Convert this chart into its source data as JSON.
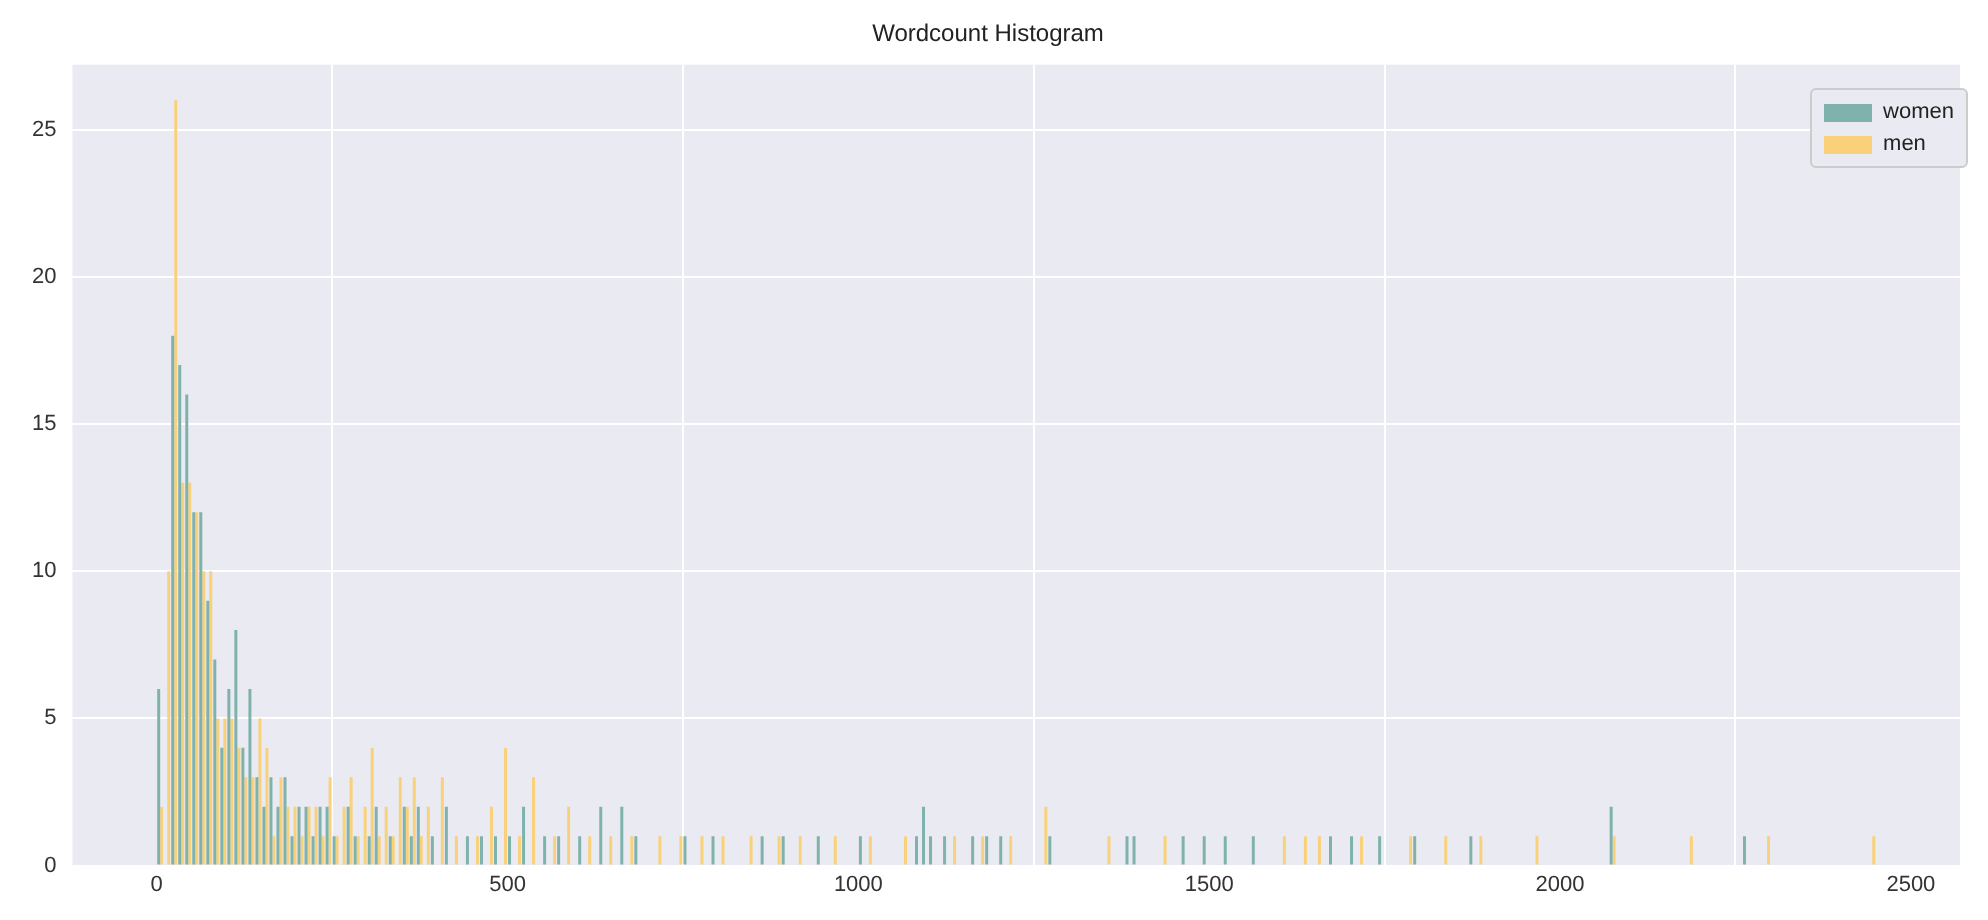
{
  "chart_data": {
    "type": "histogram",
    "title": "Wordcount Histogram",
    "bins": [
      0,
      10,
      20,
      30,
      40,
      50,
      60,
      70,
      80,
      90,
      100,
      110,
      120,
      130,
      140,
      150,
      160,
      170,
      180,
      190,
      200,
      210,
      220,
      230,
      240,
      250,
      260,
      270,
      280,
      290,
      300,
      310,
      320,
      330,
      340,
      350,
      360,
      370,
      380,
      390,
      400,
      410,
      420,
      430,
      440,
      450,
      460,
      470,
      480,
      490,
      500,
      510,
      520,
      530,
      540,
      550,
      560,
      570,
      580,
      590,
      600,
      610,
      620,
      630,
      640,
      650,
      660,
      670,
      680,
      690,
      700,
      710,
      720,
      730,
      740,
      750,
      760,
      770,
      780,
      790,
      800,
      810,
      820,
      830,
      840,
      850,
      860,
      870,
      880,
      890,
      900,
      910,
      920,
      930,
      940,
      950,
      960,
      970,
      980,
      990,
      1000,
      1010,
      1020,
      1030,
      1040,
      1050,
      1060,
      1070,
      1080,
      1090,
      1100,
      1110,
      1120,
      1130,
      1140,
      1150,
      1160,
      1170,
      1180,
      1190,
      1200,
      1210,
      1220,
      1230,
      1240,
      1250,
      1260,
      1270,
      1280,
      1290,
      1300,
      1310,
      1320,
      1330,
      1340,
      1350,
      1360,
      1370,
      1380,
      1390,
      1400,
      1410,
      1420,
      1430,
      1440,
      1450,
      1460,
      1470,
      1480,
      1490,
      1500,
      1510,
      1520,
      1530,
      1540,
      1550,
      1560,
      1570,
      1580,
      1590,
      1600,
      1610,
      1620,
      1630,
      1640,
      1650,
      1660,
      1670,
      1680,
      1690,
      1700,
      1710,
      1720,
      1730,
      1740,
      1750,
      1760,
      1770,
      1780,
      1790,
      1800,
      1810,
      1820,
      1830,
      1840,
      1850,
      1860,
      1870,
      1880,
      1890,
      1900,
      1910,
      1920,
      1930,
      1940,
      1950,
      1960,
      1970,
      1980,
      1990,
      2000,
      2010,
      2020,
      2030,
      2040,
      2050,
      2060,
      2070,
      2080,
      2090,
      2100,
      2110,
      2120,
      2130,
      2140,
      2150,
      2160,
      2170,
      2180,
      2190,
      2200,
      2210,
      2220,
      2230,
      2240,
      2250,
      2260,
      2270,
      2280,
      2290,
      2300,
      2310,
      2320,
      2330,
      2340,
      2350,
      2360,
      2370,
      2380,
      2390,
      2400,
      2410,
      2420,
      2430,
      2440,
      2450,
      2460,
      2470,
      2480,
      2490,
      2500
    ],
    "series": [
      {
        "name": "women",
        "color": "#7fb2ad",
        "values": [
          6,
          0,
          18,
          17,
          16,
          12,
          12,
          9,
          7,
          4,
          6,
          8,
          4,
          6,
          3,
          2,
          3,
          2,
          3,
          1,
          2,
          2,
          1,
          2,
          2,
          1,
          0,
          2,
          1,
          0,
          1,
          2,
          0,
          1,
          0,
          2,
          1,
          2,
          0,
          1,
          0,
          2,
          0,
          0,
          1,
          0,
          1,
          0,
          1,
          0,
          1,
          0,
          2,
          0,
          0,
          1,
          0,
          1,
          0,
          0,
          1,
          0,
          0,
          2,
          0,
          0,
          2,
          0,
          1,
          0,
          0,
          0,
          0,
          0,
          0,
          1,
          0,
          0,
          0,
          1,
          0,
          0,
          0,
          0,
          0,
          0,
          1,
          0,
          0,
          1,
          0,
          0,
          0,
          0,
          1,
          0,
          0,
          0,
          0,
          0,
          1,
          0,
          0,
          0,
          0,
          0,
          0,
          0,
          1,
          2,
          1,
          0,
          1,
          0,
          0,
          0,
          1,
          0,
          1,
          0,
          1,
          0,
          0,
          0,
          0,
          0,
          0,
          1,
          0,
          0,
          0,
          0,
          0,
          0,
          0,
          0,
          0,
          0,
          1,
          1,
          0,
          0,
          0,
          0,
          0,
          0,
          1,
          0,
          0,
          1,
          0,
          0,
          1,
          0,
          0,
          0,
          1,
          0,
          0,
          0,
          0,
          0,
          0,
          0,
          0,
          0,
          0,
          1,
          0,
          0,
          1,
          0,
          0,
          0,
          1,
          0,
          0,
          0,
          0,
          1,
          0,
          0,
          0,
          0,
          0,
          0,
          0,
          1,
          0,
          0,
          0,
          0,
          0,
          0,
          0,
          0,
          0,
          0,
          0,
          0,
          0,
          0,
          0,
          0,
          0,
          0,
          0,
          2,
          0,
          0,
          0,
          0,
          0,
          0,
          0,
          0,
          0,
          0,
          0,
          0,
          0,
          0,
          0,
          0,
          0,
          0,
          1,
          0,
          0,
          0,
          0,
          0,
          0,
          0,
          0,
          0,
          0,
          0,
          0,
          0,
          0,
          0,
          0,
          0,
          0,
          0,
          0,
          0,
          0,
          0
        ]
      },
      {
        "name": "men",
        "color": "#f9d17a",
        "values": [
          2,
          10,
          26,
          13,
          13,
          12,
          10,
          10,
          5,
          5,
          5,
          4,
          3,
          3,
          5,
          4,
          1,
          3,
          2,
          2,
          1,
          2,
          2,
          1,
          3,
          1,
          2,
          3,
          1,
          2,
          4,
          1,
          2,
          1,
          3,
          2,
          3,
          1,
          2,
          0,
          3,
          0,
          1,
          0,
          0,
          1,
          0,
          2,
          0,
          4,
          0,
          1,
          0,
          3,
          0,
          0,
          1,
          0,
          2,
          0,
          0,
          1,
          0,
          0,
          1,
          0,
          0,
          1,
          0,
          0,
          0,
          1,
          0,
          0,
          1,
          0,
          0,
          1,
          0,
          0,
          1,
          0,
          0,
          0,
          1,
          0,
          0,
          0,
          1,
          0,
          0,
          1,
          0,
          0,
          0,
          0,
          1,
          0,
          0,
          0,
          0,
          1,
          0,
          0,
          0,
          0,
          1,
          0,
          0,
          0,
          0,
          0,
          0,
          1,
          0,
          0,
          0,
          1,
          0,
          0,
          0,
          1,
          0,
          0,
          0,
          0,
          2,
          0,
          0,
          0,
          0,
          0,
          0,
          0,
          0,
          1,
          0,
          0,
          0,
          0,
          0,
          0,
          0,
          1,
          0,
          0,
          0,
          0,
          0,
          0,
          0,
          0,
          0,
          0,
          0,
          0,
          0,
          0,
          0,
          0,
          1,
          0,
          0,
          1,
          0,
          1,
          0,
          0,
          0,
          0,
          0,
          1,
          0,
          0,
          0,
          0,
          0,
          0,
          1,
          0,
          0,
          0,
          0,
          1,
          0,
          0,
          0,
          0,
          1,
          0,
          0,
          0,
          0,
          0,
          0,
          0,
          1,
          0,
          0,
          0,
          0,
          0,
          0,
          0,
          0,
          0,
          0,
          1,
          0,
          0,
          0,
          0,
          0,
          0,
          0,
          0,
          0,
          0,
          1,
          0,
          0,
          0,
          0,
          0,
          0,
          0,
          0,
          0,
          0,
          1,
          0,
          0,
          0,
          0,
          0,
          0,
          0,
          0,
          0,
          0,
          0,
          0,
          0,
          0,
          1,
          0,
          0,
          0,
          0,
          0
        ]
      }
    ],
    "xlim": [
      -120,
      2570
    ],
    "xticks": [
      0,
      500,
      1000,
      1500,
      2000,
      2500
    ],
    "ylim": [
      0,
      27.2
    ],
    "yticks": [
      0,
      5,
      10,
      15,
      20,
      25
    ],
    "grid": true,
    "legend": "top right"
  }
}
